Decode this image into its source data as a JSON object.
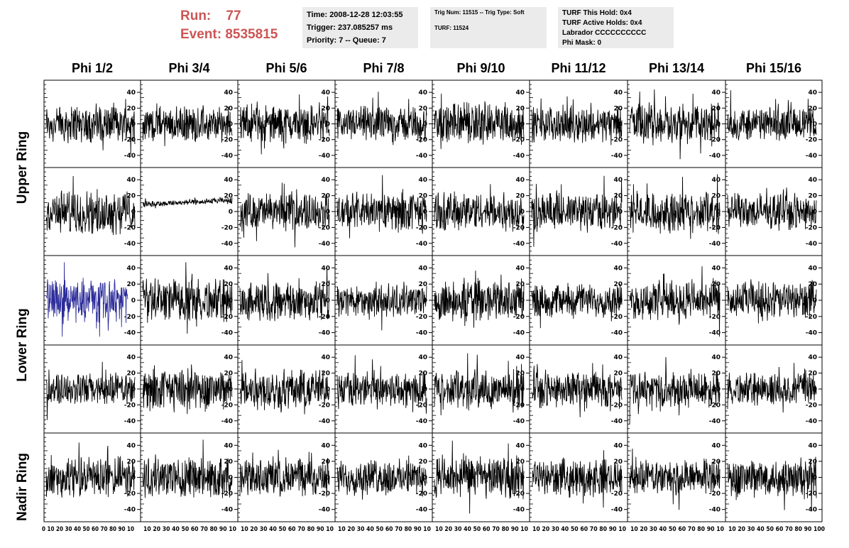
{
  "header": {
    "run_label": "Run:",
    "run_value": "77",
    "event_label": "Event:",
    "event_value": "8535815"
  },
  "info_box_1": {
    "time": "Time: 2008-12-28 12:03:55",
    "trigger": "Trigger: 237.085257 ms",
    "priority": "Priority: 7 -- Queue: 7"
  },
  "info_box_2": {
    "trig": "Trig Num: 11515 -- Trig Type: Soft",
    "turf": "TURF: 11524"
  },
  "info_box_3": {
    "hold": "TURF This Hold: 0x4",
    "active": "TURF Active Holds: 0x4",
    "labrador": "Labrador CCCCCCCCCC",
    "phimask": "Phi Mask: 0"
  },
  "phi_headers": [
    "Phi 1/2",
    "Phi 3/4",
    "Phi 5/6",
    "Phi 7/8",
    "Phi 9/10",
    "Phi 11/12",
    "Phi 13/14",
    "Phi 15/16"
  ],
  "ring_labels": {
    "upper": "Upper Ring",
    "lower": "Lower Ring",
    "nadir": "Nadir Ring"
  },
  "y_ticks": [
    "40",
    "20",
    "0",
    "-20",
    "-40"
  ],
  "x_axis_strip": [
    "0 10 20 30 40 50 60 70 80 90 10",
    "10 20 30 40 50 60 70 80 90 10",
    "10 20 30 40 50 60 70 80 90 10",
    "10 20 30 40 50 60 70 80 90 10",
    "10 20 30 40 50 60 70 80 90 10",
    "10 20 30 40 50 60 70 80 90 10",
    "10 20 30 40 50 60 70 80 90 10",
    "10 20 30 40 50 60 70 80 90 100"
  ],
  "colors": {
    "trace": "#000000",
    "highlight_trace": "#2b2b9a",
    "run_text": "#cc5555",
    "info_bg": "#ebebeb"
  },
  "chart_data": {
    "type": "line",
    "rows": 5,
    "cols": 8,
    "ylim": [
      -50,
      50
    ],
    "xlim": [
      0,
      100
    ],
    "highlight_panel": {
      "row": 2,
      "col": 0
    },
    "quiet_panel": {
      "row": 1,
      "col": 1
    }
  }
}
